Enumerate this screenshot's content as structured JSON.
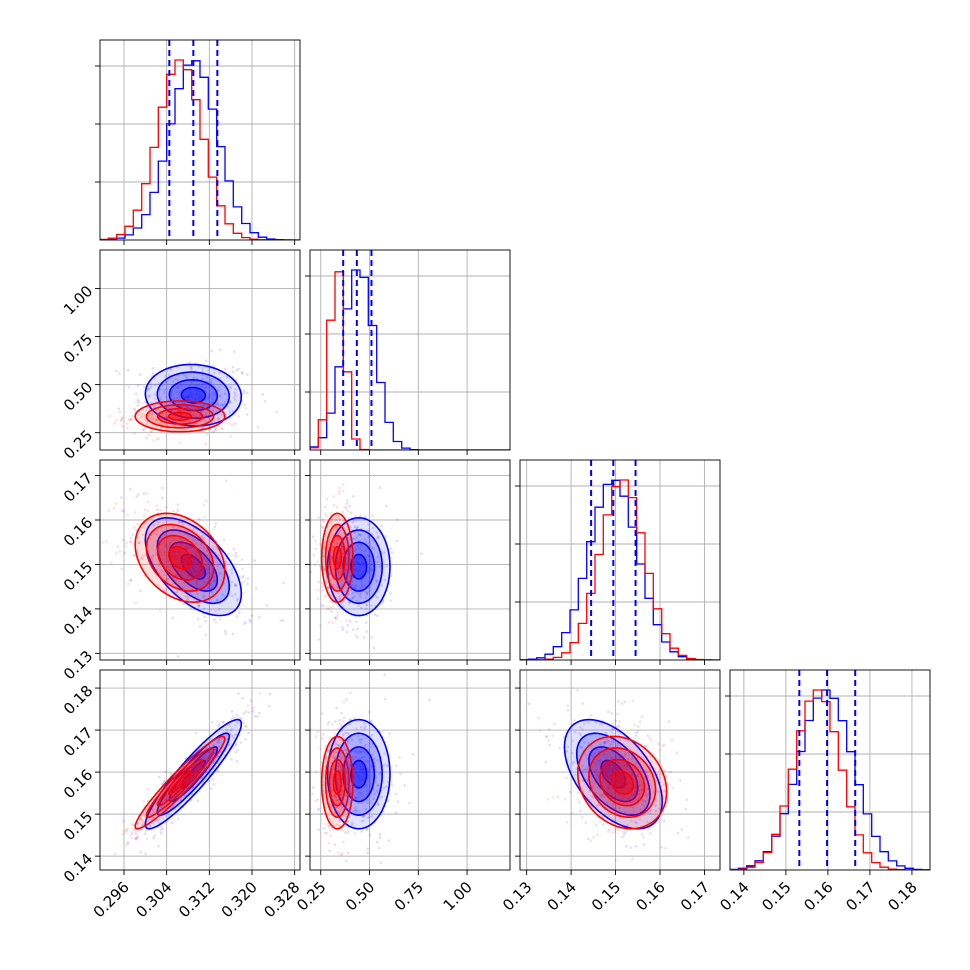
{
  "chart_data": {
    "type": "corner",
    "grid": true,
    "colors": {
      "blue": "#0000ff",
      "red": "#ff0000"
    },
    "series": [
      {
        "color": "blue",
        "mean": [
          0.309,
          0.445,
          0.1495,
          0.1595
        ],
        "std": [
          0.0045,
          0.08,
          0.0055,
          0.0065
        ],
        "corr": [
          [
            1,
            -0.05,
            -0.55,
            0.92
          ],
          [
            -0.05,
            1,
            0.0,
            0.0
          ],
          [
            -0.55,
            0.0,
            1,
            -0.5
          ],
          [
            0.92,
            0.0,
            -0.5,
            1
          ]
        ]
      },
      {
        "color": "red",
        "mean": [
          0.3065,
          0.335,
          0.1515,
          0.1575
        ],
        "std": [
          0.0042,
          0.04,
          0.005,
          0.0055
        ],
        "corr": [
          [
            1,
            0.0,
            -0.3,
            0.95
          ],
          [
            0.0,
            1,
            0.0,
            0.0
          ],
          [
            -0.3,
            0.0,
            1,
            -0.2
          ],
          [
            0.95,
            0.0,
            -0.2,
            1
          ]
        ]
      }
    ],
    "quantile_lines": [
      [
        0.3045,
        0.309,
        0.3135
      ],
      [
        0.365,
        0.435,
        0.51
      ],
      [
        0.1445,
        0.1495,
        0.1545
      ],
      [
        0.1532,
        0.1598,
        0.1665
      ]
    ],
    "xlim": [
      [
        0.2915,
        0.329
      ],
      [
        0.195,
        1.22
      ],
      [
        0.1285,
        0.1735
      ],
      [
        0.1367,
        0.1843
      ]
    ],
    "ylim": [
      [
        0.2915,
        0.329
      ],
      [
        0.16,
        1.2
      ],
      [
        0.1285,
        0.1735
      ],
      [
        0.1367,
        0.1843
      ]
    ],
    "x_ticks": [
      [
        "0.296",
        "0.304",
        "0.312",
        "0.320",
        "0.328"
      ],
      [
        "0.25",
        "0.50",
        "0.75",
        "1.00"
      ],
      [
        "0.13",
        "0.14",
        "0.15",
        "0.16",
        "0.17"
      ],
      [
        "0.14",
        "0.15",
        "0.16",
        "0.17",
        "0.18"
      ]
    ],
    "x_tick_values": [
      [
        0.296,
        0.304,
        0.312,
        0.32,
        0.328
      ],
      [
        0.25,
        0.5,
        0.75,
        1.0
      ],
      [
        0.13,
        0.14,
        0.15,
        0.16,
        0.17
      ],
      [
        0.14,
        0.15,
        0.16,
        0.17,
        0.18
      ]
    ],
    "y_ticks": {
      "row1": [
        "0.25",
        "0.50",
        "0.75",
        "1.00"
      ],
      "row2": [
        "0.13",
        "0.14",
        "0.15",
        "0.16",
        "0.17"
      ],
      "row3": [
        "0.14",
        "0.15",
        "0.16",
        "0.17",
        "0.18"
      ]
    },
    "y_tick_values": {
      "row1": [
        0.25,
        0.5,
        0.75,
        1.0
      ],
      "row2": [
        0.13,
        0.14,
        0.15,
        0.16,
        0.17
      ],
      "row3": [
        0.14,
        0.15,
        0.16,
        0.17,
        0.18
      ]
    },
    "contour_levels": [
      0.5,
      1.0,
      1.5,
      2.0
    ]
  }
}
